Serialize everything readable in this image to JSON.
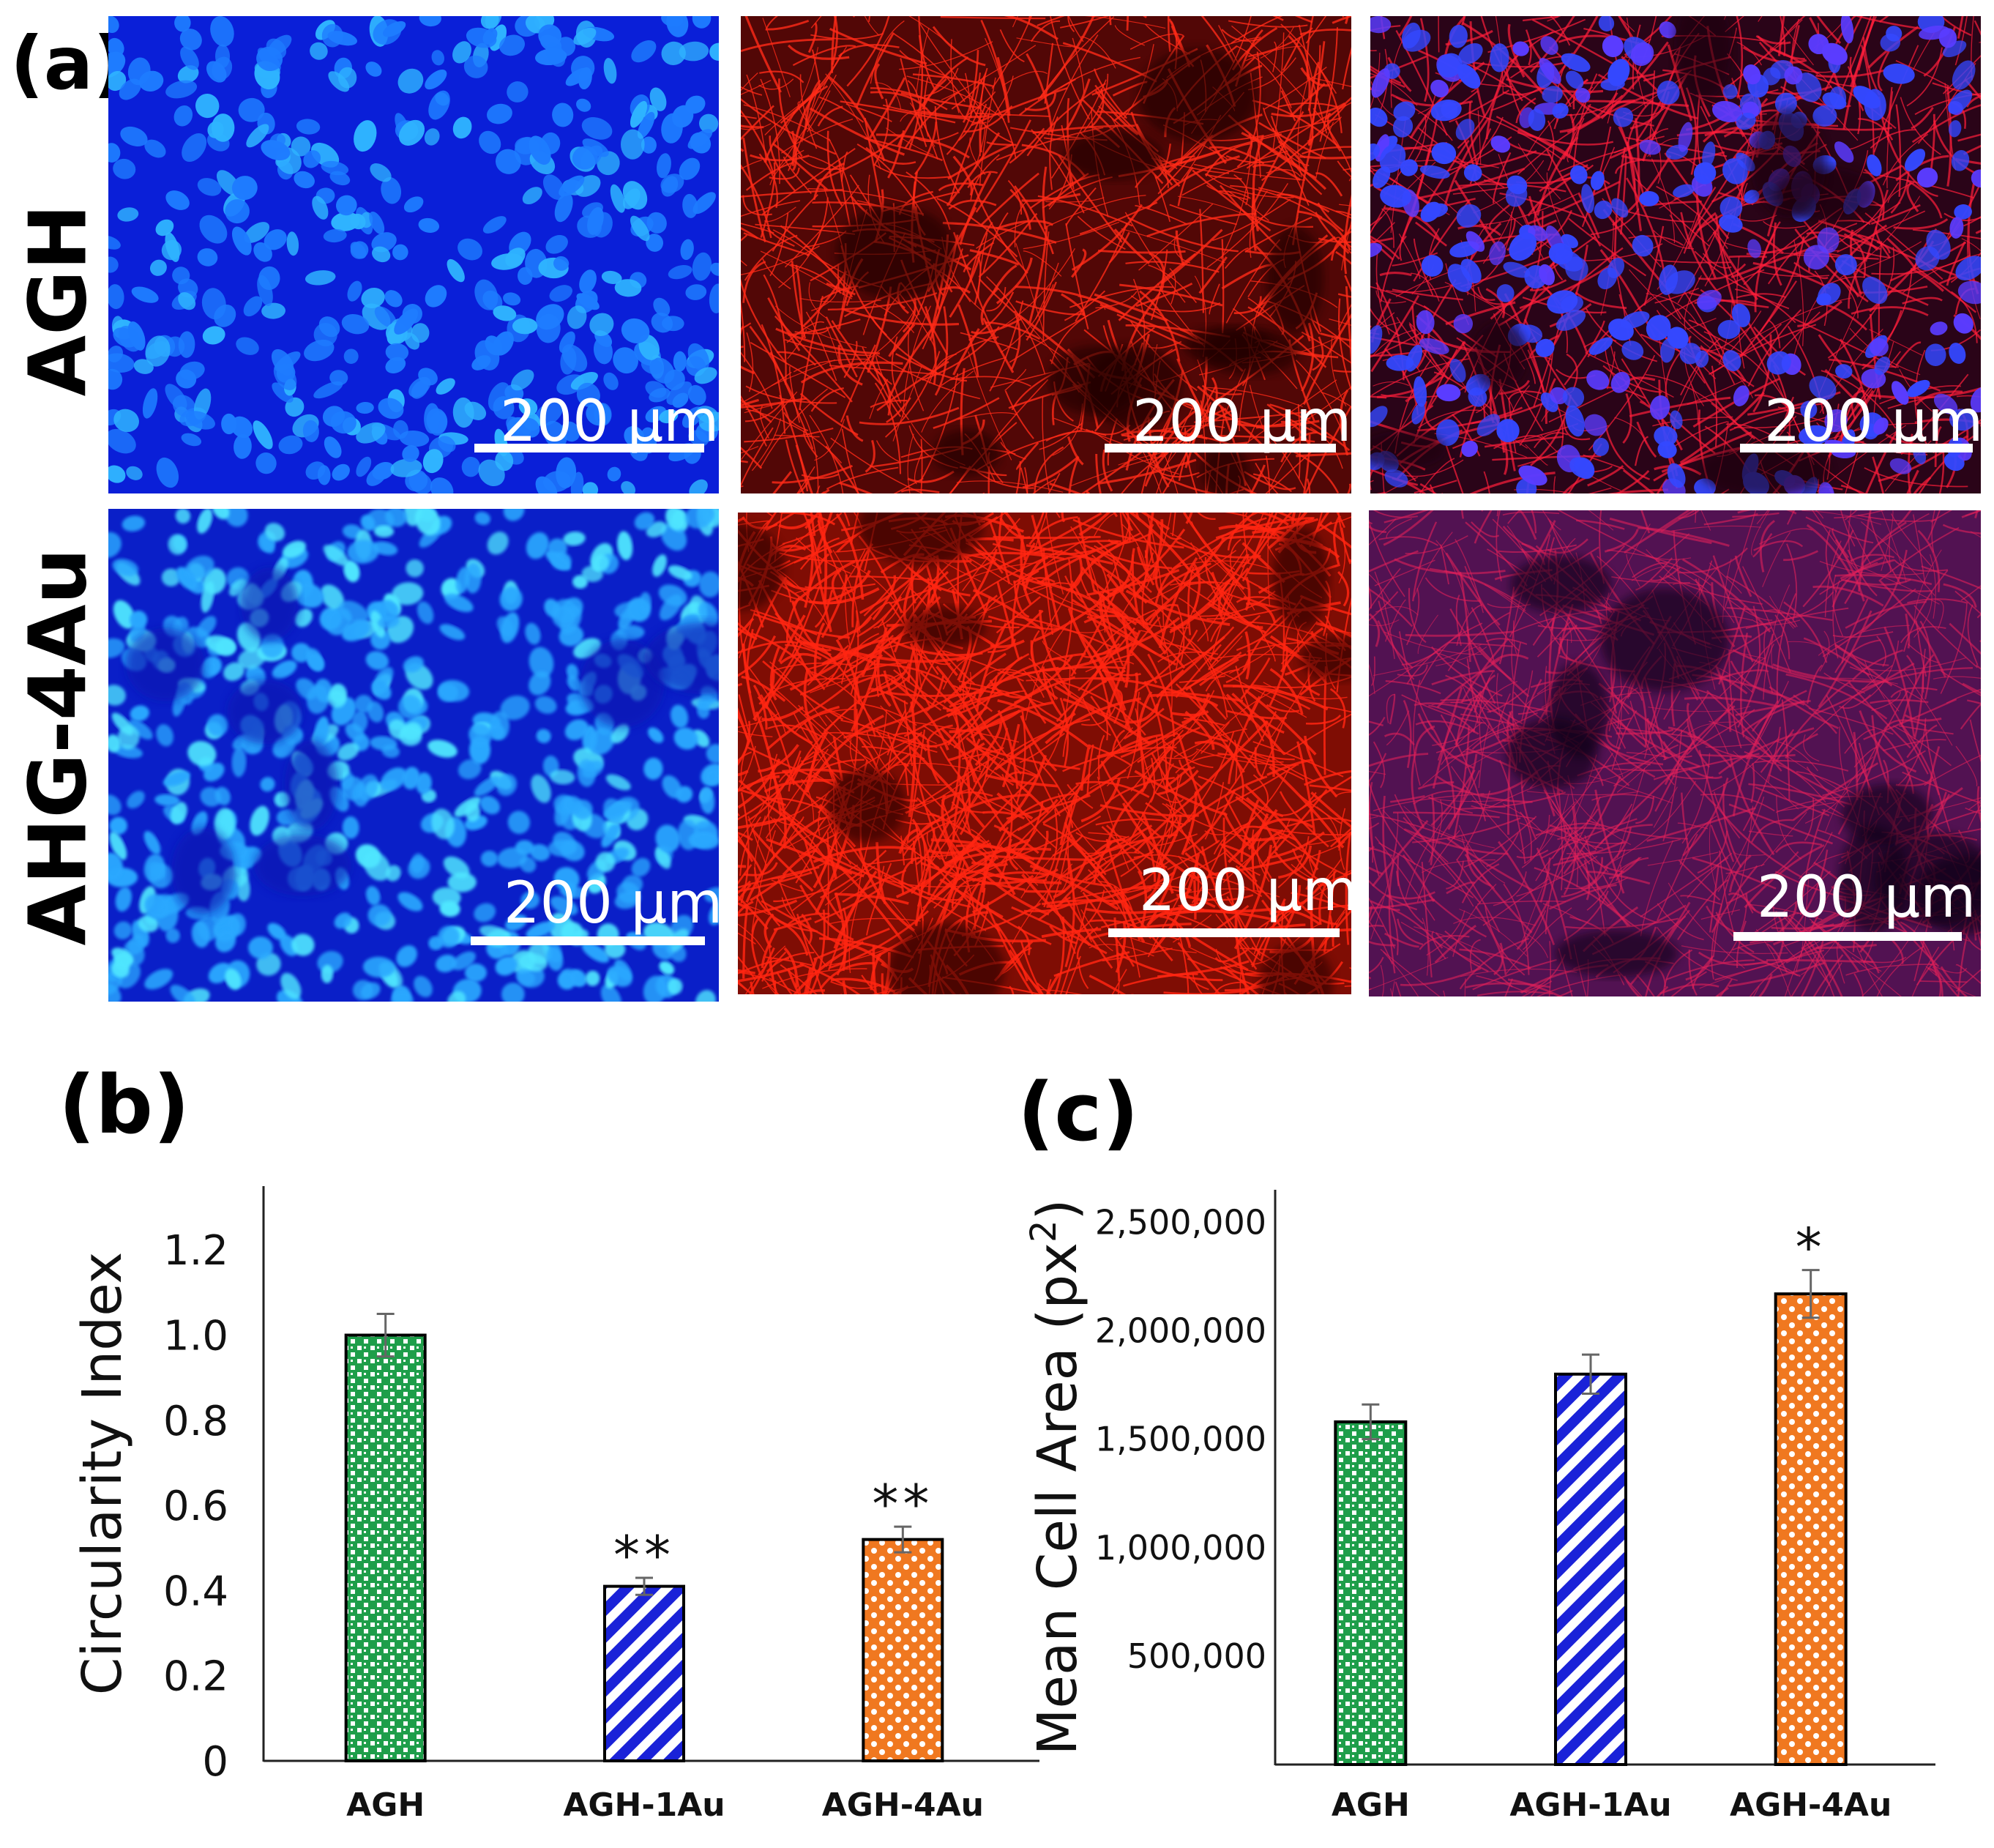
{
  "panels": {
    "a": "(a)",
    "b": "(b)",
    "c": "(c)"
  },
  "rows": [
    "AGH",
    "AHG-4Au"
  ],
  "scale_bar_label": "200 µm",
  "stain_colors": {
    "dapi": "#0a1fd8",
    "dapi_nuclei": "#1ea0ff",
    "actin": "#ff1a10",
    "merge": "#b01a5a"
  },
  "bar_colors": {
    "AGH": "#1e9e4a",
    "AGH-1Au": "#1a22d8",
    "AGH-4Au": "#f07820"
  },
  "chart_data": [
    {
      "type": "bar",
      "panel": "(b)",
      "categories": [
        "AGH",
        "AGH-1Au",
        "AGH-4Au"
      ],
      "values": [
        1.0,
        0.41,
        0.52
      ],
      "errors": [
        0.05,
        0.02,
        0.03
      ],
      "significance": [
        "",
        "**",
        "**"
      ],
      "ylabel": "Circularity Index",
      "xlabel": "",
      "ylim": [
        0,
        1.35
      ],
      "yticks": [
        0,
        0.2,
        0.4,
        0.6,
        0.8,
        1.0,
        1.2
      ],
      "ytick_labels": [
        "0",
        "0.2",
        "0.4",
        "0.6",
        "0.8",
        "1.0",
        "1.2"
      ]
    },
    {
      "type": "bar",
      "panel": "(c)",
      "categories": [
        "AGH",
        "AGH-1Au",
        "AGH-4Au"
      ],
      "values": [
        1580000,
        1800000,
        2170000
      ],
      "errors": [
        80000,
        90000,
        110000
      ],
      "significance": [
        "",
        "",
        "*"
      ],
      "ylabel": "Mean Cell Area (px",
      "ylabel_sup": "2",
      "ylabel_suffix": ")",
      "xlabel": "",
      "ylim": [
        0,
        2650000
      ],
      "yticks": [
        500000,
        1000000,
        1500000,
        2000000,
        2500000
      ],
      "ytick_labels": [
        "500,000",
        "1,000,000",
        "1,500,000",
        "2,000,000",
        "2,500,000"
      ]
    }
  ]
}
